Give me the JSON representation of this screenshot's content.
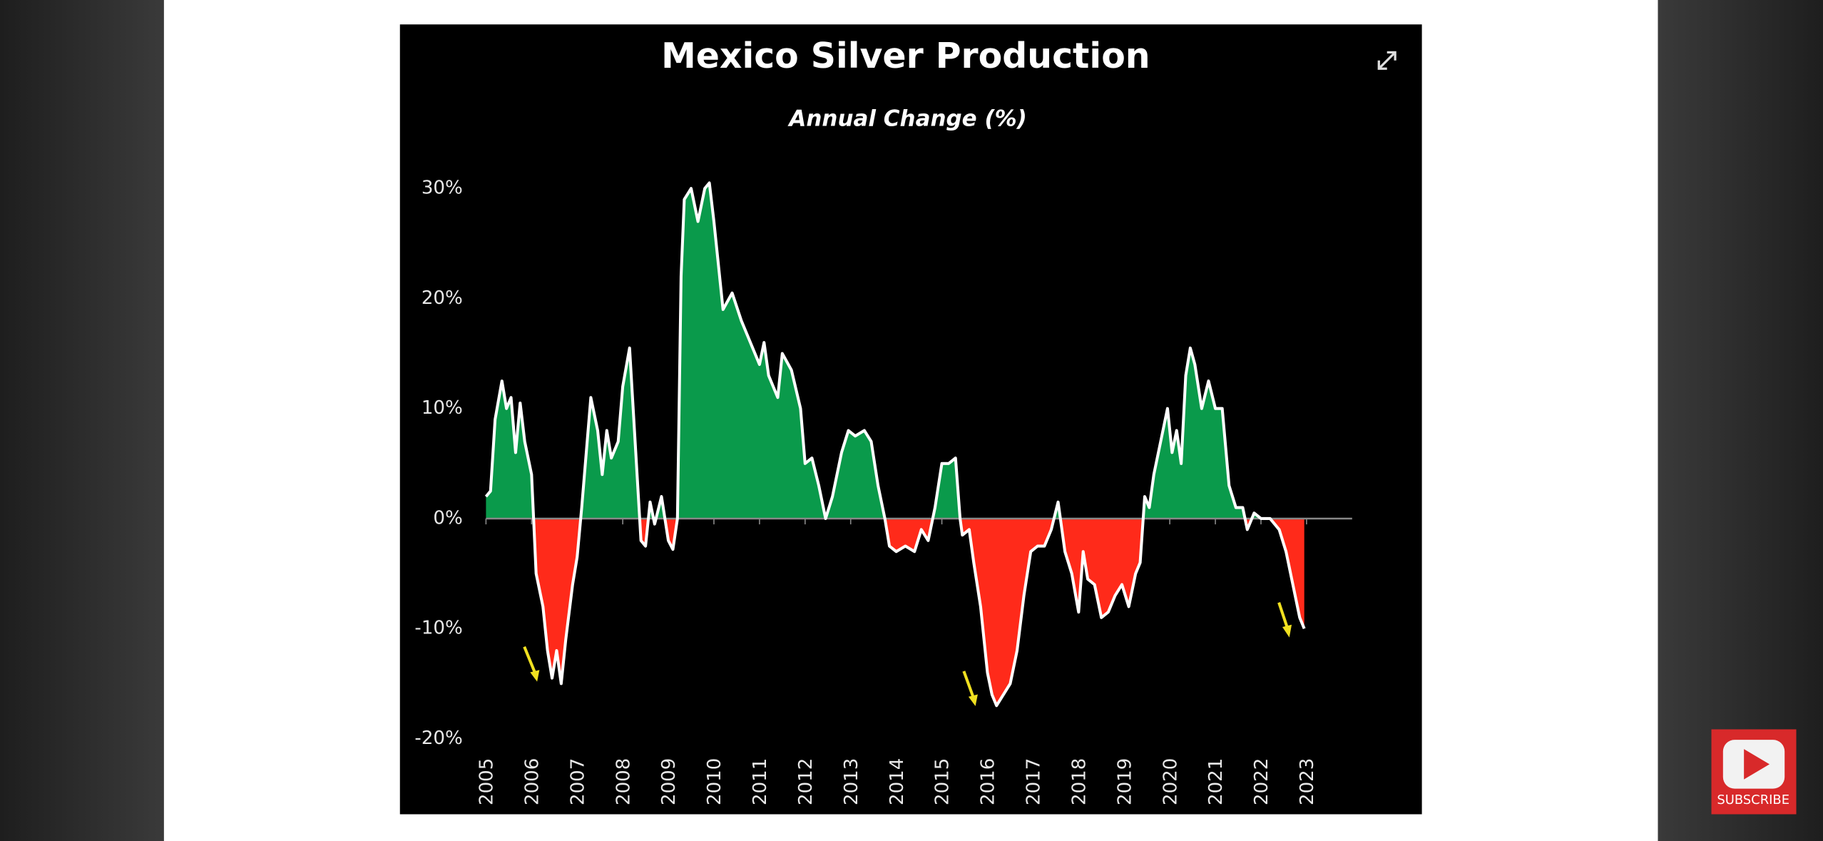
{
  "chart_data": {
    "type": "area",
    "title": "Mexico Silver Production",
    "subtitle": "Annual Change (%)",
    "positive_color": "#0a9a4b",
    "negative_color": "#ff2a1a",
    "line_color": "#ffffff",
    "xlim": [
      2005,
      2024
    ],
    "xticks": [
      2005,
      2006,
      2007,
      2008,
      2009,
      2010,
      2011,
      2012,
      2013,
      2014,
      2015,
      2016,
      2017,
      2018,
      2019,
      2020,
      2021,
      2022,
      2023
    ],
    "ylim": [
      -20,
      30
    ],
    "yticks": [
      {
        "value": -20,
        "label": "-20%"
      },
      {
        "value": -10,
        "label": "-10%"
      },
      {
        "value": 0,
        "label": "0%"
      },
      {
        "value": 10,
        "label": "10%"
      },
      {
        "value": 20,
        "label": "20%"
      },
      {
        "value": 30,
        "label": "30%"
      }
    ],
    "x": [
      2005.0,
      2005.1,
      2005.2,
      2005.35,
      2005.45,
      2005.55,
      2005.65,
      2005.75,
      2005.85,
      2006.0,
      2006.1,
      2006.25,
      2006.35,
      2006.45,
      2006.55,
      2006.65,
      2006.75,
      2006.9,
      2007.0,
      2007.1,
      2007.3,
      2007.45,
      2007.55,
      2007.65,
      2007.75,
      2007.9,
      2008.0,
      2008.15,
      2008.3,
      2008.4,
      2008.5,
      2008.6,
      2008.7,
      2008.85,
      2009.0,
      2009.1,
      2009.2,
      2009.28,
      2009.35,
      2009.5,
      2009.6,
      2009.65,
      2009.8,
      2009.9,
      2010.0,
      2010.2,
      2010.4,
      2010.6,
      2010.8,
      2011.0,
      2011.1,
      2011.2,
      2011.4,
      2011.5,
      2011.7,
      2011.9,
      2012.0,
      2012.15,
      2012.3,
      2012.45,
      2012.6,
      2012.8,
      2012.95,
      2013.1,
      2013.3,
      2013.45,
      2013.6,
      2013.75,
      2013.85,
      2014.0,
      2014.2,
      2014.4,
      2014.55,
      2014.7,
      2014.85,
      2015.0,
      2015.15,
      2015.3,
      2015.4,
      2015.45,
      2015.6,
      2015.7,
      2015.85,
      2016.0,
      2016.1,
      2016.2,
      2016.35,
      2016.5,
      2016.65,
      2016.8,
      2016.95,
      2017.1,
      2017.25,
      2017.4,
      2017.55,
      2017.7,
      2017.85,
      2018.0,
      2018.1,
      2018.2,
      2018.35,
      2018.5,
      2018.65,
      2018.8,
      2018.95,
      2019.1,
      2019.25,
      2019.35,
      2019.45,
      2019.55,
      2019.65,
      2019.8,
      2019.95,
      2020.05,
      2020.15,
      2020.25,
      2020.35,
      2020.45,
      2020.55,
      2020.7,
      2020.85,
      2021.0,
      2021.15,
      2021.3,
      2021.45,
      2021.6,
      2021.7,
      2021.85,
      2022.0,
      2022.2,
      2022.4,
      2022.55,
      2022.7,
      2022.85,
      2022.95
    ],
    "values": [
      2,
      2.5,
      9,
      12.5,
      10,
      11,
      6,
      10.5,
      7,
      4,
      -5,
      -8,
      -12,
      -14.5,
      -12,
      -15,
      -11,
      -6,
      -3.5,
      1,
      11,
      8,
      4,
      8,
      5.5,
      7,
      12,
      15.5,
      5,
      -2,
      -2.5,
      1.5,
      -0.5,
      2,
      -2,
      -2.8,
      0,
      22,
      29,
      30,
      28,
      27,
      30,
      30.5,
      27,
      19,
      20.5,
      18,
      16,
      14,
      16,
      13,
      11,
      15,
      13.5,
      10,
      5,
      5.5,
      3,
      0,
      2,
      6,
      8,
      7.5,
      8,
      7,
      3,
      0,
      -2.5,
      -3,
      -2.5,
      -3,
      -1,
      -2,
      1,
      5,
      5,
      5.5,
      0,
      -1.5,
      -1,
      -4,
      -8,
      -14,
      -16,
      -17,
      -16,
      -15,
      -12,
      -7,
      -3,
      -2.5,
      -2.5,
      -1,
      1.5,
      -3,
      -5,
      -8.5,
      -3,
      -5.5,
      -6,
      -9,
      -8.5,
      -7,
      -6,
      -8,
      -5,
      -4,
      2,
      1,
      4,
      7,
      10,
      6,
      8,
      5,
      13,
      15.5,
      14,
      10,
      12.5,
      10,
      10,
      3,
      1,
      1,
      -1,
      0.5,
      0,
      0,
      -1,
      -3,
      -6,
      -9,
      -10
    ]
  },
  "button_label": "SUBSCRIBE"
}
